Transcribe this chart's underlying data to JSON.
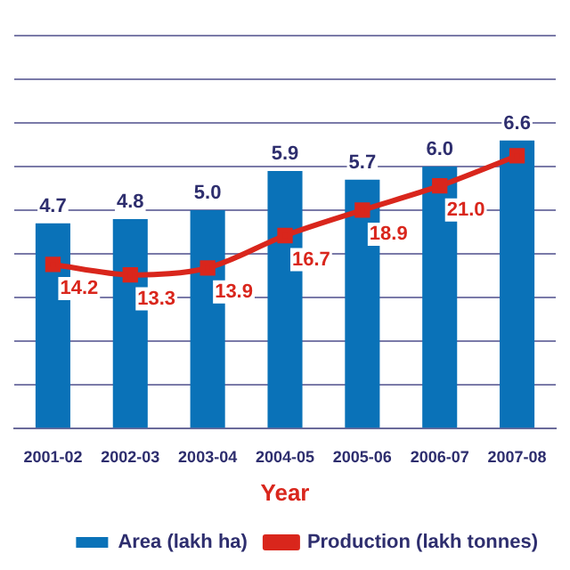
{
  "chart_data": {
    "type": "bar",
    "xlabel": "Year",
    "categories": [
      "2001-02",
      "2002-03",
      "2003-04",
      "2004-05",
      "2005-06",
      "2006-07",
      "2007-08"
    ],
    "series": [
      {
        "name": "Area (lakh ha)",
        "color": "#0a72b8",
        "values": [
          4.7,
          4.8,
          5.0,
          5.9,
          5.7,
          6.0,
          6.6
        ],
        "value_labels": [
          "4.7",
          "4.8",
          "5.0",
          "5.9",
          "5.7",
          "6.0",
          "6.6"
        ]
      },
      {
        "name": "Production (lakh tonnes)",
        "type": "line",
        "axis": "y2",
        "color": "#d9261c",
        "marker": "square",
        "values": [
          14.2,
          13.3,
          13.9,
          16.7,
          18.9,
          21.0,
          23.6
        ],
        "value_labels": [
          "14.2",
          "13.3",
          "13.9",
          "16.7",
          "18.9",
          "21.0",
          null
        ]
      }
    ],
    "ylim": [
      0,
      9
    ],
    "yticks": [
      {
        "value": 0,
        "label": null
      },
      {
        "value": 1,
        "label": null
      },
      {
        "value": 2,
        "label": null
      },
      {
        "value": 3,
        "label": null
      },
      {
        "value": 4,
        "label": null
      },
      {
        "value": 5,
        "label": null
      },
      {
        "value": 6,
        "label": null
      },
      {
        "value": 7,
        "label": null
      },
      {
        "value": 8,
        "label": null
      },
      {
        "value": 9,
        "label": null
      }
    ],
    "y2lim": [
      0,
      34
    ],
    "grid": "y",
    "tick_labels": "x",
    "legend": "bottom right"
  }
}
